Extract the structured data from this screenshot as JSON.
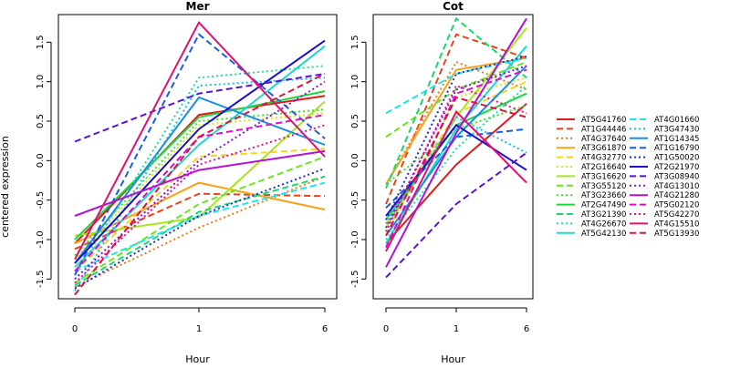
{
  "chart_data": {
    "type": "line",
    "ylabel": "centered expression",
    "xlabel": "Hour",
    "x_categories": [
      "0",
      "1",
      "6"
    ],
    "ylim": [
      -1.75,
      1.85
    ],
    "yticks": [
      "-1.5",
      "-1.0",
      "-0.5",
      "0.0",
      "0.5",
      "1.0",
      "1.5"
    ],
    "panels": [
      {
        "title": "Mer",
        "series": [
          {
            "name": "AT5G41760",
            "values": [
              -1.05,
              0.58,
              0.82
            ]
          },
          {
            "name": "AT1G44446",
            "values": [
              -1.12,
              -0.42,
              -0.45
            ]
          },
          {
            "name": "AT4G37640",
            "values": [
              -1.6,
              -0.85,
              -0.2
            ]
          },
          {
            "name": "AT3G61870",
            "values": [
              -1.05,
              -0.28,
              -0.62
            ]
          },
          {
            "name": "AT4G32770",
            "values": [
              -1.4,
              0.05,
              0.15
            ]
          },
          {
            "name": "AT2G16640",
            "values": [
              -1.25,
              0.45,
              0.6
            ]
          },
          {
            "name": "AT3G16620",
            "values": [
              -0.95,
              -0.72,
              0.75
            ]
          },
          {
            "name": "AT3G55120",
            "values": [
              -1.55,
              -0.55,
              0.05
            ]
          },
          {
            "name": "AT3G23660",
            "values": [
              -1.2,
              0.5,
              0.65
            ]
          },
          {
            "name": "AT2G47490",
            "values": [
              -1.0,
              0.55,
              0.88
            ]
          },
          {
            "name": "AT3G21390",
            "values": [
              -1.58,
              -0.65,
              -0.2
            ]
          },
          {
            "name": "AT4G26670",
            "values": [
              -1.45,
              1.05,
              1.2
            ]
          },
          {
            "name": "AT5G42130",
            "values": [
              -1.35,
              0.2,
              1.45
            ]
          },
          {
            "name": "AT4G01660",
            "values": [
              -1.4,
              -0.7,
              -0.28
            ]
          },
          {
            "name": "AT3G47430",
            "values": [
              -1.65,
              0.95,
              1.05
            ]
          },
          {
            "name": "AT1G14345",
            "values": [
              -1.3,
              0.8,
              0.2
            ]
          },
          {
            "name": "AT1G16790",
            "values": [
              -1.45,
              1.6,
              0.28
            ]
          },
          {
            "name": "AT1G50020",
            "values": [
              -1.62,
              -0.7,
              -0.1
            ]
          },
          {
            "name": "AT2G21970",
            "values": [
              -1.3,
              0.4,
              1.52
            ]
          },
          {
            "name": "AT3G08940",
            "values": [
              0.24,
              0.85,
              1.1
            ]
          },
          {
            "name": "AT4G13010",
            "values": [
              -1.5,
              0.0,
              1.0
            ]
          },
          {
            "name": "AT4G21280",
            "values": [
              -0.7,
              -0.12,
              0.12
            ]
          },
          {
            "name": "AT5G02120",
            "values": [
              -1.4,
              0.3,
              0.58
            ]
          },
          {
            "name": "AT5G42270",
            "values": [
              -1.55,
              -0.05,
              0.45
            ]
          },
          {
            "name": "AT4G15510",
            "values": [
              -1.25,
              1.75,
              0.05
            ]
          },
          {
            "name": "AT5G13930",
            "values": [
              -1.7,
              0.3,
              1.1
            ]
          }
        ]
      },
      {
        "title": "Cot",
        "series": [
          {
            "name": "AT5G41760",
            "values": [
              -1.05,
              -0.05,
              0.72
            ]
          },
          {
            "name": "AT1G44446",
            "values": [
              -0.55,
              1.6,
              1.3
            ]
          },
          {
            "name": "AT4G37640",
            "values": [
              -0.3,
              1.25,
              0.9
            ]
          },
          {
            "name": "AT3G61870",
            "values": [
              -0.3,
              1.15,
              1.3
            ]
          },
          {
            "name": "AT4G32770",
            "values": [
              -0.8,
              0.6,
              1.0
            ]
          },
          {
            "name": "AT2G16640",
            "values": [
              -0.95,
              0.8,
              1.05
            ]
          },
          {
            "name": "AT3G16620",
            "values": [
              -0.85,
              0.55,
              1.68
            ]
          },
          {
            "name": "AT3G55120",
            "values": [
              0.3,
              0.9,
              1.25
            ]
          },
          {
            "name": "AT3G23660",
            "values": [
              -0.3,
              0.4,
              0.7
            ]
          },
          {
            "name": "AT2G47490",
            "values": [
              -0.75,
              0.45,
              0.85
            ]
          },
          {
            "name": "AT3G21390",
            "values": [
              -0.35,
              1.8,
              1.05
            ]
          },
          {
            "name": "AT4G26670",
            "values": [
              -1.0,
              0.15,
              0.95
            ]
          },
          {
            "name": "AT5G42130",
            "values": [
              -1.05,
              0.4,
              1.45
            ]
          },
          {
            "name": "AT4G01660",
            "values": [
              0.6,
              1.1,
              1.3
            ]
          },
          {
            "name": "AT3G47430",
            "values": [
              -0.8,
              0.55,
              0.1
            ]
          },
          {
            "name": "AT1G14345",
            "values": [
              -0.95,
              0.3,
              1.2
            ]
          },
          {
            "name": "AT1G16790",
            "values": [
              -0.6,
              0.3,
              0.4
            ]
          },
          {
            "name": "AT1G50020",
            "values": [
              -0.75,
              1.1,
              1.32
            ]
          },
          {
            "name": "AT2G21970",
            "values": [
              -0.7,
              0.45,
              -0.12
            ]
          },
          {
            "name": "AT3G08940",
            "values": [
              -1.48,
              -0.55,
              0.1
            ]
          },
          {
            "name": "AT4G13010",
            "values": [
              -0.85,
              0.9,
              1.2
            ]
          },
          {
            "name": "AT4G21280",
            "values": [
              -1.35,
              0.35,
              1.8
            ]
          },
          {
            "name": "AT5G02120",
            "values": [
              -1.1,
              0.85,
              1.15
            ]
          },
          {
            "name": "AT5G42270",
            "values": [
              -0.9,
              0.95,
              0.6
            ]
          },
          {
            "name": "AT4G15510",
            "values": [
              -1.15,
              0.62,
              -0.28
            ]
          },
          {
            "name": "AT5G13930",
            "values": [
              -0.95,
              0.8,
              0.55
            ]
          }
        ]
      }
    ],
    "legend": [
      {
        "name": "AT5G41760",
        "color": "#e31a1c",
        "dash": "solid"
      },
      {
        "name": "AT1G44446",
        "color": "#e8421a",
        "dash": "dashed"
      },
      {
        "name": "AT4G37640",
        "color": "#f07a1a",
        "dash": "dotted"
      },
      {
        "name": "AT3G61870",
        "color": "#f5a21a",
        "dash": "solid"
      },
      {
        "name": "AT4G32770",
        "color": "#f5d51a",
        "dash": "dashed"
      },
      {
        "name": "AT2G16640",
        "color": "#d6e61a",
        "dash": "dotted"
      },
      {
        "name": "AT3G16620",
        "color": "#a6e61a",
        "dash": "solid"
      },
      {
        "name": "AT3G55120",
        "color": "#6be61a",
        "dash": "dashed"
      },
      {
        "name": "AT3G23660",
        "color": "#3ee62a",
        "dash": "dotted"
      },
      {
        "name": "AT2G47490",
        "color": "#1ad93a",
        "dash": "solid"
      },
      {
        "name": "AT3G21390",
        "color": "#1ad96a",
        "dash": "dashed"
      },
      {
        "name": "AT4G26670",
        "color": "#1ae0a0",
        "dash": "dotted"
      },
      {
        "name": "AT5G42130",
        "color": "#1ad9d0",
        "dash": "solid"
      },
      {
        "name": "AT4G01660",
        "color": "#1ae6f0",
        "dash": "dashed"
      },
      {
        "name": "AT3G47430",
        "color": "#1ac0f0",
        "dash": "dotted"
      },
      {
        "name": "AT1G14345",
        "color": "#1a8ee6",
        "dash": "solid"
      },
      {
        "name": "AT1G16790",
        "color": "#1a5ee6",
        "dash": "dashed"
      },
      {
        "name": "AT1G50020",
        "color": "#1a30d9",
        "dash": "dotted"
      },
      {
        "name": "AT2G21970",
        "color": "#1a10cc",
        "dash": "solid"
      },
      {
        "name": "AT3G08940",
        "color": "#5a10d9",
        "dash": "dashed"
      },
      {
        "name": "AT4G13010",
        "color": "#8a10d9",
        "dash": "dotted"
      },
      {
        "name": "AT4G21280",
        "color": "#b410d9",
        "dash": "solid"
      },
      {
        "name": "AT5G02120",
        "color": "#d910c8",
        "dash": "dashed"
      },
      {
        "name": "AT5G42270",
        "color": "#e010a0",
        "dash": "dotted"
      },
      {
        "name": "AT4G15510",
        "color": "#e01070",
        "dash": "solid"
      },
      {
        "name": "AT5G13930",
        "color": "#e01040",
        "dash": "dashed"
      }
    ]
  }
}
